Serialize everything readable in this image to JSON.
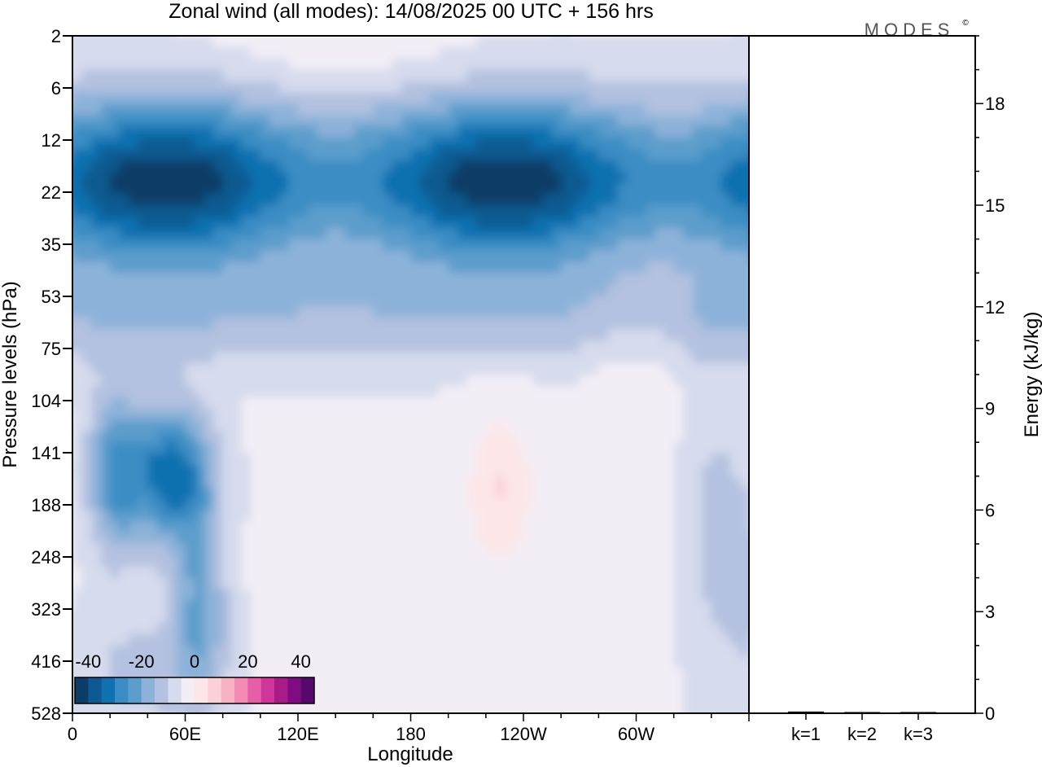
{
  "title": "Zonal wind (all modes):  14/08/2025  00 UTC  + 156 hrs",
  "logo": "MODES",
  "logo_mark": "©",
  "colors": {
    "negative": [
      "#0b3d66",
      "#0c5a91",
      "#1071b0",
      "#3a8dc4",
      "#5c9dcc",
      "#8db2d9",
      "#b4c1e0",
      "#d6dbed"
    ],
    "neutral": "#f3eef6",
    "positive": [
      "#fde6e8",
      "#fbd0d6",
      "#f9b2c4",
      "#f48bb4",
      "#e85ea6",
      "#d0359a",
      "#aa1b8a",
      "#7f0c80",
      "#55086e"
    ]
  },
  "chart_data": [
    {
      "type": "heatmap",
      "title": "Zonal wind (all modes):  14/08/2025  00 UTC  + 156 hrs",
      "xlabel": "Longitude",
      "ylabel": "Pressure levels (hPa)",
      "x_ticks": [
        "0",
        "60E",
        "120E",
        "180",
        "120W",
        "60W"
      ],
      "x_tick_degrees": [
        0,
        60,
        120,
        180,
        240,
        300
      ],
      "xlim": [
        0,
        360
      ],
      "y_ticks": [
        "2",
        "6",
        "12",
        "22",
        "35",
        "53",
        "75",
        "104",
        "141",
        "188",
        "248",
        "323",
        "416",
        "528"
      ],
      "colorbar": {
        "ticks": [
          "-40",
          "-20",
          "0",
          "20",
          "40"
        ],
        "tick_values": [
          -40,
          -20,
          0,
          20,
          40
        ],
        "range": [
          -45,
          45
        ],
        "placement": "bottom-left"
      },
      "features": [
        {
          "name": "easterly jet core",
          "levels": "6-35",
          "value_min": -40
        },
        {
          "name": "westward upper-troposphere core 60E",
          "levels": "104-248",
          "value_min": -28
        },
        {
          "name": "westerly patch near 110W",
          "levels": "104-248",
          "value_max": 12
        }
      ]
    },
    {
      "type": "bar",
      "ylabel": "Energy (kJ/kg)",
      "categories": [
        "k=1",
        "k=2",
        "k=3"
      ],
      "values": [
        0.05,
        0.03,
        0.02
      ],
      "ylim": [
        0,
        20
      ],
      "y_ticks": [
        "0",
        "3",
        "6",
        "9",
        "12",
        "15",
        "18"
      ],
      "y_tick_values": [
        0,
        3,
        6,
        9,
        12,
        15,
        18
      ]
    }
  ]
}
